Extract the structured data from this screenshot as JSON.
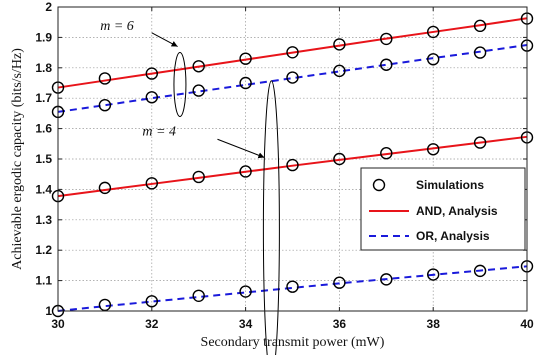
{
  "chart_data": {
    "type": "line",
    "xlabel": "Secondary transmit power (mW)",
    "ylabel": "Achievable ergodic capacity (bits/s/Hz)",
    "xlim": [
      30,
      40
    ],
    "ylim": [
      1.0,
      2.0
    ],
    "xticks": [
      30,
      32,
      34,
      36,
      38,
      40
    ],
    "yticks": [
      1,
      1.1,
      1.2,
      1.3,
      1.4,
      1.5,
      1.6,
      1.7,
      1.8,
      1.9,
      2
    ],
    "ytick_labels": [
      "1",
      "1.1",
      "1.2",
      "1.3",
      "1.4",
      "1.5",
      "1.6",
      "1.7",
      "1.8",
      "1.9",
      "2"
    ],
    "grid": "dotted",
    "legend_position": "center-right",
    "legend": [
      {
        "label": "Simulations",
        "style": "marker-circle"
      },
      {
        "label": "AND, Analysis",
        "style": "solid",
        "color": "#e8141a"
      },
      {
        "label": "OR, Analysis",
        "style": "dashed",
        "color": "#1a1adb"
      }
    ],
    "annotations": [
      {
        "text": "m = 6"
      },
      {
        "text": "m = 4"
      }
    ],
    "x": [
      30,
      31,
      32,
      33,
      34,
      35,
      36,
      37,
      38,
      39,
      40
    ],
    "series": [
      {
        "name": "AND, Analysis",
        "group": "m = 6",
        "style": "solid",
        "color": "#e8141a",
        "values": [
          1.735,
          1.758,
          1.781,
          1.804,
          1.827,
          1.85,
          1.873,
          1.896,
          1.918,
          1.94,
          1.963
        ]
      },
      {
        "name": "OR, Analysis",
        "group": "m = 6",
        "style": "dashed",
        "color": "#1a1adb",
        "values": [
          1.655,
          1.677,
          1.7,
          1.722,
          1.744,
          1.766,
          1.788,
          1.81,
          1.832,
          1.853,
          1.875
        ]
      },
      {
        "name": "AND, Analysis",
        "group": "m = 4",
        "style": "solid",
        "color": "#e8141a",
        "values": [
          1.378,
          1.398,
          1.418,
          1.438,
          1.458,
          1.478,
          1.497,
          1.516,
          1.535,
          1.554,
          1.573
        ]
      },
      {
        "name": "OR, Analysis",
        "group": "m = 4",
        "style": "dashed",
        "color": "#1a1adb",
        "values": [
          1.0,
          1.016,
          1.031,
          1.046,
          1.061,
          1.076,
          1.091,
          1.105,
          1.119,
          1.133,
          1.147
        ]
      }
    ],
    "simulations": [
      {
        "group": "m = 6",
        "values": [
          1.735,
          1.765,
          1.781,
          1.805,
          1.83,
          1.851,
          1.877,
          1.895,
          1.918,
          1.938,
          1.962
        ]
      },
      {
        "group": "m = 6",
        "values": [
          1.655,
          1.677,
          1.703,
          1.725,
          1.75,
          1.768,
          1.79,
          1.81,
          1.828,
          1.85,
          1.873
        ]
      },
      {
        "group": "m = 4",
        "values": [
          1.378,
          1.405,
          1.42,
          1.441,
          1.459,
          1.48,
          1.5,
          1.519,
          1.532,
          1.554,
          1.571
        ]
      },
      {
        "group": "m = 4",
        "values": [
          1.0,
          1.02,
          1.032,
          1.05,
          1.064,
          1.08,
          1.093,
          1.104,
          1.12,
          1.132,
          1.147
        ]
      }
    ]
  }
}
